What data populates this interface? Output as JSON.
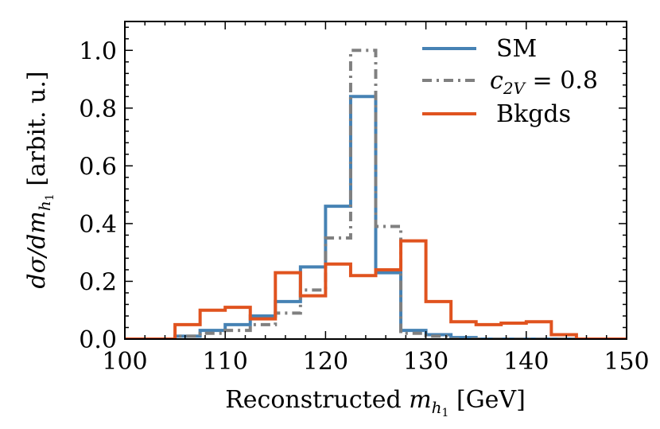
{
  "chart_data": {
    "type": "line",
    "style": "step-histogram",
    "title": "",
    "xlabel": {
      "prefix": "Reconstructed ",
      "var": "m",
      "sub1": "h",
      "sub2": "1",
      "suffix": " [GeV]"
    },
    "ylabel": {
      "var": "dσ/dm",
      "sub1": "h",
      "sub2": "1",
      "suffix": " [arbit. u.]"
    },
    "xlim": [
      100,
      150
    ],
    "ylim": [
      0,
      1.1
    ],
    "xticks": [
      "100",
      "110",
      "120",
      "130",
      "140",
      "150"
    ],
    "xtick_values": [
      100,
      110,
      120,
      130,
      140,
      150
    ],
    "yticks": [
      "0.0",
      "0.2",
      "0.4",
      "0.6",
      "0.8",
      "1.0"
    ],
    "ytick_values": [
      0.0,
      0.2,
      0.4,
      0.6,
      0.8,
      1.0
    ],
    "bin_edges": [
      100,
      102.5,
      105,
      107.5,
      110,
      112.5,
      115,
      117.5,
      120,
      122.5,
      125,
      127.5,
      130,
      132.5,
      135,
      137.5,
      140,
      142.5,
      145,
      147.5,
      150
    ],
    "legend_position": "top-right",
    "series": [
      {
        "name": "SM",
        "legend_label": "SM",
        "color": "#4682b4",
        "linestyle": "solid",
        "values": [
          0,
          0,
          0.01,
          0.03,
          0.05,
          0.08,
          0.13,
          0.25,
          0.46,
          0.84,
          0.23,
          0.03,
          0.015,
          0.005,
          0,
          0,
          0,
          0,
          0,
          0
        ]
      },
      {
        "name": "c2V = 0.8",
        "legend_label": {
          "var": "c",
          "sub": "2V",
          "rest": " = 0.8"
        },
        "color": "#808080",
        "linestyle": "dashdot",
        "values": [
          0,
          0,
          0.01,
          0.02,
          0.03,
          0.05,
          0.09,
          0.17,
          0.35,
          1.0,
          0.39,
          0.02,
          0.01,
          0,
          0,
          0,
          0,
          0,
          0,
          0
        ]
      },
      {
        "name": "Bkgds",
        "legend_label": "Bkgds",
        "color": "#e0531f",
        "linestyle": "solid",
        "values": [
          0,
          0,
          0.05,
          0.1,
          0.11,
          0.07,
          0.23,
          0.15,
          0.26,
          0.22,
          0.24,
          0.34,
          0.13,
          0.06,
          0.05,
          0.055,
          0.06,
          0.015,
          0,
          0
        ]
      }
    ]
  }
}
